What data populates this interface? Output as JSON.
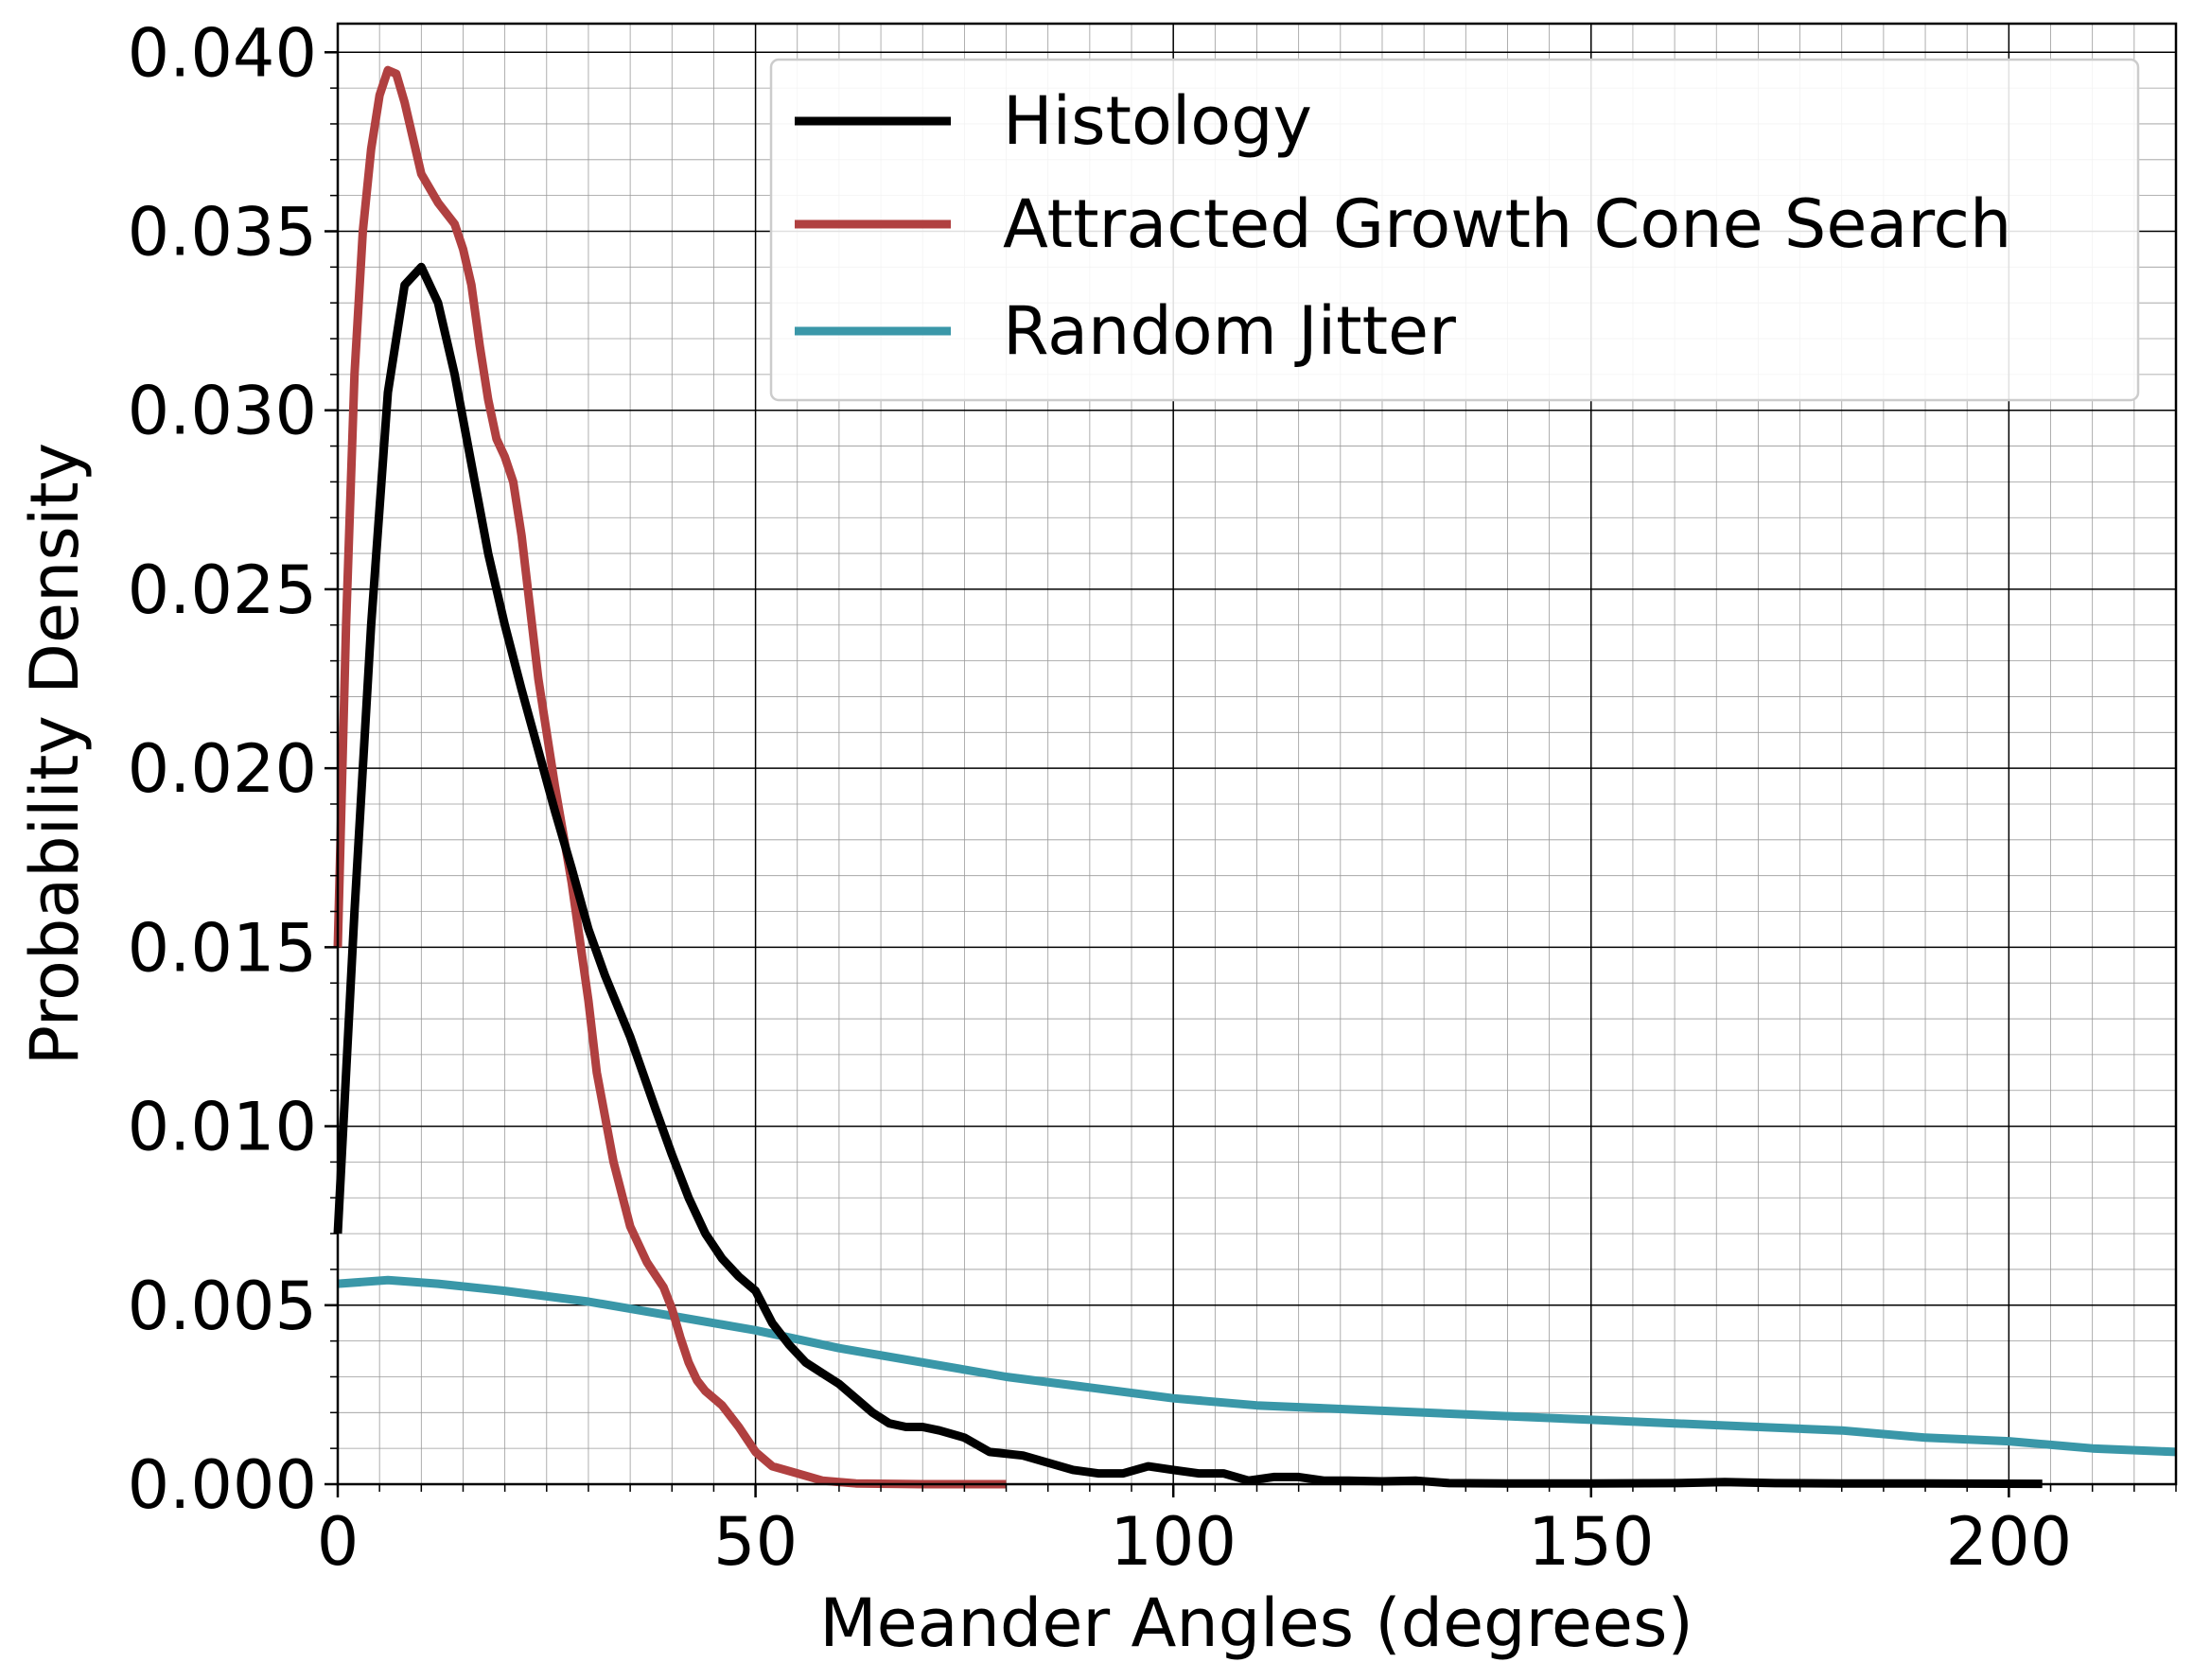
{
  "chart_data": {
    "type": "line",
    "title": "",
    "xlabel": "Meander Angles (degrees)",
    "ylabel": "Probability Density",
    "xlim": [
      0,
      220
    ],
    "ylim": [
      0,
      0.0408
    ],
    "x_ticks": [
      0,
      50,
      100,
      150,
      200
    ],
    "x_tick_labels": [
      "0",
      "50",
      "100",
      "150",
      "200"
    ],
    "y_ticks": [
      0,
      0.005,
      0.01,
      0.015,
      0.02,
      0.025,
      0.03,
      0.035,
      0.04
    ],
    "y_tick_labels": [
      "0.000",
      "0.005",
      "0.010",
      "0.015",
      "0.020",
      "0.025",
      "0.030",
      "0.035",
      "0.040"
    ],
    "x_minor_step": 5,
    "y_minor_step": 0.001,
    "grid": true,
    "legend_position": "top-right",
    "series": [
      {
        "name": "Histology",
        "color": "#000000",
        "points": [
          [
            0,
            0.007
          ],
          [
            2,
            0.016
          ],
          [
            4,
            0.024
          ],
          [
            6,
            0.0305
          ],
          [
            8,
            0.0335
          ],
          [
            10,
            0.034
          ],
          [
            12,
            0.033
          ],
          [
            14,
            0.031
          ],
          [
            16,
            0.0285
          ],
          [
            18,
            0.026
          ],
          [
            20,
            0.024
          ],
          [
            22,
            0.0222
          ],
          [
            24,
            0.0205
          ],
          [
            26,
            0.0188
          ],
          [
            28,
            0.0172
          ],
          [
            30,
            0.0155
          ],
          [
            32,
            0.0142
          ],
          [
            35,
            0.0125
          ],
          [
            38,
            0.0105
          ],
          [
            40,
            0.0092
          ],
          [
            42,
            0.008
          ],
          [
            44,
            0.007
          ],
          [
            46,
            0.0063
          ],
          [
            48,
            0.0058
          ],
          [
            50,
            0.0054
          ],
          [
            52,
            0.0045
          ],
          [
            54,
            0.0039
          ],
          [
            56,
            0.0034
          ],
          [
            58,
            0.0031
          ],
          [
            60,
            0.0028
          ],
          [
            62,
            0.0024
          ],
          [
            64,
            0.002
          ],
          [
            66,
            0.0017
          ],
          [
            68,
            0.0016
          ],
          [
            70,
            0.0016
          ],
          [
            72,
            0.0015
          ],
          [
            75,
            0.0013
          ],
          [
            78,
            0.0009
          ],
          [
            82,
            0.0008
          ],
          [
            85,
            0.0006
          ],
          [
            88,
            0.0004
          ],
          [
            91,
            0.0003
          ],
          [
            94,
            0.0003
          ],
          [
            97,
            0.0005
          ],
          [
            100,
            0.0004
          ],
          [
            103,
            0.0003
          ],
          [
            106,
            0.0003
          ],
          [
            109,
            0.0001
          ],
          [
            112,
            0.0002
          ],
          [
            115,
            0.0002
          ],
          [
            118,
            0.0001
          ],
          [
            121,
            0.0001
          ],
          [
            125,
            8e-05
          ],
          [
            129,
            0.0001
          ],
          [
            133,
            3e-05
          ],
          [
            140,
            2e-05
          ],
          [
            150,
            2e-05
          ],
          [
            160,
            3e-05
          ],
          [
            166,
            6e-05
          ],
          [
            172,
            3e-05
          ],
          [
            180,
            2e-05
          ],
          [
            190,
            2e-05
          ],
          [
            204,
            1e-05
          ]
        ]
      },
      {
        "name": "Attracted Growth Cone Search",
        "color": "#b04040",
        "points": [
          [
            0,
            0.015
          ],
          [
            1,
            0.024
          ],
          [
            2,
            0.031
          ],
          [
            3,
            0.035
          ],
          [
            4,
            0.0373
          ],
          [
            5,
            0.0388
          ],
          [
            6,
            0.0395
          ],
          [
            7,
            0.0394
          ],
          [
            8,
            0.0386
          ],
          [
            9,
            0.0376
          ],
          [
            10,
            0.0366
          ],
          [
            12,
            0.0358
          ],
          [
            14,
            0.0352
          ],
          [
            15,
            0.0345
          ],
          [
            16,
            0.0335
          ],
          [
            17,
            0.0318
          ],
          [
            18,
            0.0303
          ],
          [
            19,
            0.0292
          ],
          [
            20,
            0.0287
          ],
          [
            21,
            0.028
          ],
          [
            22,
            0.0265
          ],
          [
            24,
            0.0225
          ],
          [
            26,
            0.0195
          ],
          [
            28,
            0.0168
          ],
          [
            30,
            0.0135
          ],
          [
            31,
            0.0115
          ],
          [
            33,
            0.009
          ],
          [
            35,
            0.0072
          ],
          [
            37,
            0.0062
          ],
          [
            39,
            0.0055
          ],
          [
            40,
            0.0049
          ],
          [
            41,
            0.0041
          ],
          [
            42,
            0.0034
          ],
          [
            43,
            0.0029
          ],
          [
            44,
            0.0026
          ],
          [
            46,
            0.0022
          ],
          [
            48,
            0.0016
          ],
          [
            50,
            0.0009
          ],
          [
            52,
            0.0005
          ],
          [
            55,
            0.0003
          ],
          [
            58,
            0.0001
          ],
          [
            62,
            2e-05
          ],
          [
            70,
            0
          ],
          [
            80,
            0
          ]
        ]
      },
      {
        "name": "Random Jitter",
        "color": "#3a97a8",
        "points": [
          [
            0,
            0.0056
          ],
          [
            6,
            0.0057
          ],
          [
            12,
            0.0056
          ],
          [
            20,
            0.0054
          ],
          [
            30,
            0.0051
          ],
          [
            40,
            0.0047
          ],
          [
            50,
            0.0043
          ],
          [
            60,
            0.0038
          ],
          [
            70,
            0.0034
          ],
          [
            80,
            0.003
          ],
          [
            90,
            0.0027
          ],
          [
            100,
            0.0024
          ],
          [
            110,
            0.0022
          ],
          [
            120,
            0.0021
          ],
          [
            130,
            0.002
          ],
          [
            140,
            0.0019
          ],
          [
            150,
            0.0018
          ],
          [
            160,
            0.0017
          ],
          [
            170,
            0.0016
          ],
          [
            180,
            0.0015
          ],
          [
            190,
            0.0013
          ],
          [
            200,
            0.0012
          ],
          [
            210,
            0.001
          ],
          [
            220,
            0.0009
          ]
        ]
      }
    ]
  }
}
